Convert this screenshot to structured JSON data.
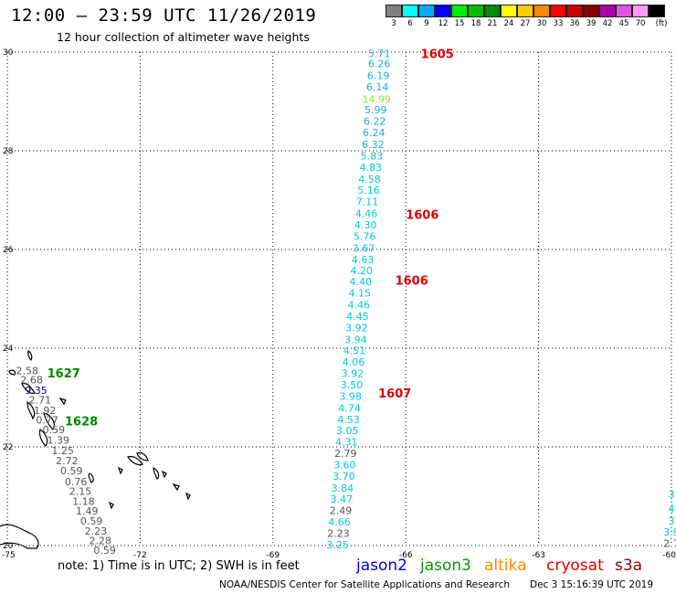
{
  "header": {
    "title": "12:00 — 23:59 UTC 11/26/2019",
    "subtitle": "12 hour collection of altimeter wave heights"
  },
  "legend": {
    "unit": "(ft)",
    "items": [
      {
        "label": "3",
        "color": "#808080"
      },
      {
        "label": "6",
        "color": "#00ffff"
      },
      {
        "label": "9",
        "color": "#00aaff"
      },
      {
        "label": "12",
        "color": "#0000ff"
      },
      {
        "label": "15",
        "color": "#00ee00"
      },
      {
        "label": "18",
        "color": "#00bb00"
      },
      {
        "label": "21",
        "color": "#008800"
      },
      {
        "label": "24",
        "color": "#ffff00"
      },
      {
        "label": "27",
        "color": "#ffcc00"
      },
      {
        "label": "30",
        "color": "#ff8800"
      },
      {
        "label": "33",
        "color": "#ff0000"
      },
      {
        "label": "36",
        "color": "#cc0000"
      },
      {
        "label": "39",
        "color": "#880000"
      },
      {
        "label": "42",
        "color": "#aa00aa"
      },
      {
        "label": "45",
        "color": "#dd55dd"
      },
      {
        "label": "70",
        "color": "#ff99ff"
      },
      {
        "label": "",
        "color": "#000000"
      }
    ]
  },
  "axes": {
    "lat_ticks": [
      "30",
      "28",
      "26",
      "24",
      "22",
      "20"
    ],
    "lon_ticks": [
      "-75",
      "-72",
      "-69",
      "-66",
      "-63",
      "-60"
    ]
  },
  "colors": {
    "gray": "#555555",
    "cyan": "#00c8dc",
    "sky": "#1eaaee",
    "green_label": "#008800",
    "yellowgreen": "#88ee22",
    "red_label": "#dd0000",
    "navy": "#000088"
  },
  "track_labels": [
    {
      "text": "1605",
      "lon": -65.66,
      "lat": 29.97,
      "color": "red_label"
    },
    {
      "text": "1606",
      "lon": -66.0,
      "lat": 26.71,
      "color": "red_label"
    },
    {
      "text": "1606",
      "lon": -66.24,
      "lat": 25.38,
      "color": "red_label"
    },
    {
      "text": "1607",
      "lon": -66.62,
      "lat": 23.09,
      "color": "red_label"
    },
    {
      "text": "1627",
      "lon": -74.1,
      "lat": 23.5,
      "color": "green_label"
    },
    {
      "text": "1628",
      "lon": -73.7,
      "lat": 22.53,
      "color": "green_label"
    }
  ],
  "tracks": [
    {
      "name": "cryosat",
      "points": [
        {
          "lon": -66.6,
          "lat": 29.97,
          "v": "5.71",
          "c": "sky"
        },
        {
          "lon": -66.6,
          "lat": 29.77,
          "v": "6.26",
          "c": "sky"
        },
        {
          "lon": -66.62,
          "lat": 29.53,
          "v": "6.19",
          "c": "sky"
        },
        {
          "lon": -66.64,
          "lat": 29.3,
          "v": "6.14",
          "c": "sky"
        },
        {
          "lon": -66.66,
          "lat": 29.05,
          "v": "14.99",
          "c": "yellowgreen"
        },
        {
          "lon": -66.68,
          "lat": 28.83,
          "v": "5.99",
          "c": "sky"
        },
        {
          "lon": -66.7,
          "lat": 28.6,
          "v": "6.22",
          "c": "sky"
        },
        {
          "lon": -66.72,
          "lat": 28.37,
          "v": "6.24",
          "c": "sky"
        },
        {
          "lon": -66.74,
          "lat": 28.13,
          "v": "6.32",
          "c": "sky"
        },
        {
          "lon": -66.77,
          "lat": 27.9,
          "v": "5.83",
          "c": "sky"
        },
        {
          "lon": -66.79,
          "lat": 27.67,
          "v": "4.83",
          "c": "cyan"
        },
        {
          "lon": -66.82,
          "lat": 27.43,
          "v": "4.58",
          "c": "cyan"
        },
        {
          "lon": -66.84,
          "lat": 27.2,
          "v": "5.16",
          "c": "cyan"
        },
        {
          "lon": -66.87,
          "lat": 26.97,
          "v": "7.11",
          "c": "cyan"
        },
        {
          "lon": -66.89,
          "lat": 26.73,
          "v": "4.46",
          "c": "cyan"
        },
        {
          "lon": -66.91,
          "lat": 26.5,
          "v": "4.30",
          "c": "cyan"
        },
        {
          "lon": -66.93,
          "lat": 26.27,
          "v": "5.76",
          "c": "cyan"
        },
        {
          "lon": -66.95,
          "lat": 26.03,
          "v": "3.67",
          "c": "cyan"
        },
        {
          "lon": -66.97,
          "lat": 25.8,
          "v": "4.63",
          "c": "cyan"
        },
        {
          "lon": -67.0,
          "lat": 25.57,
          "v": "4.20",
          "c": "cyan"
        },
        {
          "lon": -67.02,
          "lat": 25.35,
          "v": "4.40",
          "c": "cyan"
        },
        {
          "lon": -67.04,
          "lat": 25.12,
          "v": "4.15",
          "c": "cyan"
        },
        {
          "lon": -67.06,
          "lat": 24.88,
          "v": "4.46",
          "c": "cyan"
        },
        {
          "lon": -67.09,
          "lat": 24.65,
          "v": "4.45",
          "c": "cyan"
        },
        {
          "lon": -67.11,
          "lat": 24.42,
          "v": "3.92",
          "c": "cyan"
        },
        {
          "lon": -67.13,
          "lat": 24.18,
          "v": "3.94",
          "c": "cyan"
        },
        {
          "lon": -67.16,
          "lat": 23.95,
          "v": "4.51",
          "c": "cyan"
        },
        {
          "lon": -67.18,
          "lat": 23.72,
          "v": "4.06",
          "c": "cyan"
        },
        {
          "lon": -67.2,
          "lat": 23.49,
          "v": "3.92",
          "c": "cyan"
        },
        {
          "lon": -67.22,
          "lat": 23.26,
          "v": "3.50",
          "c": "cyan"
        },
        {
          "lon": -67.25,
          "lat": 23.03,
          "v": "3.98",
          "c": "cyan"
        },
        {
          "lon": -67.27,
          "lat": 22.79,
          "v": "4.74",
          "c": "cyan"
        },
        {
          "lon": -67.29,
          "lat": 22.56,
          "v": "4.53",
          "c": "cyan"
        },
        {
          "lon": -67.32,
          "lat": 22.33,
          "v": "3.05",
          "c": "cyan"
        },
        {
          "lon": -67.34,
          "lat": 22.1,
          "v": "4.31",
          "c": "cyan"
        },
        {
          "lon": -67.36,
          "lat": 21.87,
          "v": "2.79",
          "c": "gray"
        },
        {
          "lon": -67.38,
          "lat": 21.64,
          "v": "3.60",
          "c": "cyan"
        },
        {
          "lon": -67.4,
          "lat": 21.41,
          "v": "3.70",
          "c": "cyan"
        },
        {
          "lon": -67.43,
          "lat": 21.17,
          "v": "3.84",
          "c": "cyan"
        },
        {
          "lon": -67.45,
          "lat": 20.94,
          "v": "3.47",
          "c": "cyan"
        },
        {
          "lon": -67.47,
          "lat": 20.71,
          "v": "2.49",
          "c": "gray"
        },
        {
          "lon": -67.5,
          "lat": 20.48,
          "v": "4.66",
          "c": "cyan"
        },
        {
          "lon": -67.52,
          "lat": 20.25,
          "v": "2.23",
          "c": "gray"
        },
        {
          "lon": -67.54,
          "lat": 20.02,
          "v": "3.25",
          "c": "cyan"
        }
      ]
    },
    {
      "name": "jason3",
      "points": [
        {
          "lon": -74.55,
          "lat": 23.55,
          "v": "2.58",
          "c": "gray"
        },
        {
          "lon": -74.45,
          "lat": 23.36,
          "v": "2.68",
          "c": "gray"
        },
        {
          "lon": -74.35,
          "lat": 23.15,
          "v": "9.35",
          "c": "navy"
        },
        {
          "lon": -74.26,
          "lat": 22.95,
          "v": "2.71",
          "c": "gray"
        },
        {
          "lon": -74.15,
          "lat": 22.74,
          "v": "1.92",
          "c": "gray"
        },
        {
          "lon": -74.1,
          "lat": 22.55,
          "v": "0.77",
          "c": "gray"
        },
        {
          "lon": -73.95,
          "lat": 22.35,
          "v": "0.59",
          "c": "gray"
        },
        {
          "lon": -73.85,
          "lat": 22.14,
          "v": "1.39",
          "c": "gray"
        },
        {
          "lon": -73.75,
          "lat": 21.93,
          "v": "1.25",
          "c": "gray"
        },
        {
          "lon": -73.65,
          "lat": 21.72,
          "v": "2.72",
          "c": "gray"
        },
        {
          "lon": -73.55,
          "lat": 21.52,
          "v": "0.59",
          "c": "gray"
        },
        {
          "lon": -73.45,
          "lat": 21.3,
          "v": "0.76",
          "c": "gray"
        },
        {
          "lon": -73.35,
          "lat": 21.1,
          "v": "2.15",
          "c": "gray"
        },
        {
          "lon": -73.28,
          "lat": 20.9,
          "v": "1.18",
          "c": "gray"
        },
        {
          "lon": -73.2,
          "lat": 20.7,
          "v": "1.49",
          "c": "gray"
        },
        {
          "lon": -73.1,
          "lat": 20.5,
          "v": "0.59",
          "c": "gray"
        },
        {
          "lon": -73.0,
          "lat": 20.3,
          "v": "2.23",
          "c": "gray"
        },
        {
          "lon": -72.9,
          "lat": 20.1,
          "v": "2.28",
          "c": "gray"
        },
        {
          "lon": -72.8,
          "lat": 19.91,
          "v": "0.59",
          "c": "gray"
        }
      ]
    },
    {
      "name": "edge",
      "points": [
        {
          "lon": -60.0,
          "lat": 21.05,
          "v": "3",
          "c": "cyan"
        },
        {
          "lon": -60.0,
          "lat": 20.75,
          "v": "4",
          "c": "cyan"
        },
        {
          "lon": -60.0,
          "lat": 20.5,
          "v": "3",
          "c": "cyan"
        },
        {
          "lon": -60.0,
          "lat": 20.28,
          "v": "3.9",
          "c": "cyan"
        },
        {
          "lon": -60.0,
          "lat": 20.05,
          "v": "2.7",
          "c": "gray"
        }
      ]
    }
  ],
  "footer": {
    "note": "note:  1) Time is in UTC;  2) SWH is in feet",
    "satellites": [
      {
        "name": "jason2",
        "color": "#0000dd",
        "left": 390
      },
      {
        "name": "jason3",
        "color": "#009900",
        "left": 460
      },
      {
        "name": "altika",
        "color": "#ff8800",
        "left": 530
      },
      {
        "name": "cryosat",
        "color": "#dd0000",
        "left": 598
      },
      {
        "name": "s3a",
        "color": "#880000",
        "left": 673
      }
    ],
    "credit": "NOAA/NESDIS Center for Satellite Applications and Research",
    "timestamp": "Dec  3 15:16:39 UTC 2019"
  }
}
